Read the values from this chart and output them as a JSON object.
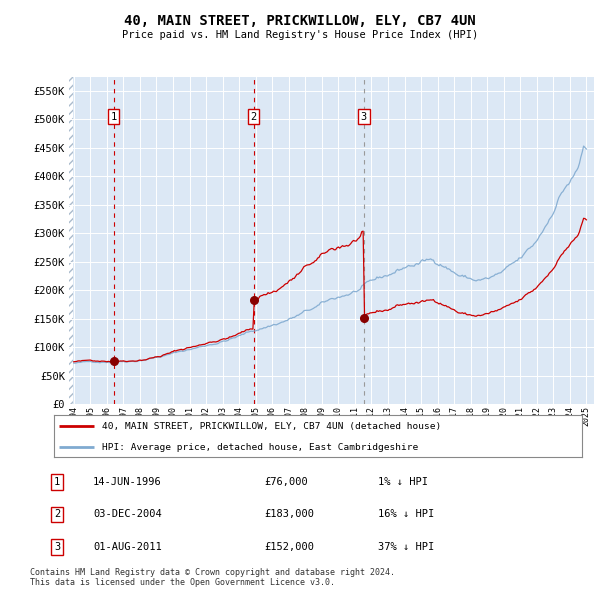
{
  "title": "40, MAIN STREET, PRICKWILLOW, ELY, CB7 4UN",
  "subtitle": "Price paid vs. HM Land Registry's House Price Index (HPI)",
  "legend_line1": "40, MAIN STREET, PRICKWILLOW, ELY, CB7 4UN (detached house)",
  "legend_line2": "HPI: Average price, detached house, East Cambridgeshire",
  "sale_dates_num": [
    1996.45,
    2004.92,
    2011.58
  ],
  "sale_prices": [
    76000,
    183000,
    152000
  ],
  "sale_labels": [
    "1",
    "2",
    "3"
  ],
  "table_rows": [
    {
      "num": "1",
      "date": "14-JUN-1996",
      "price": "£76,000",
      "hpi": "1% ↓ HPI"
    },
    {
      "num": "2",
      "date": "03-DEC-2004",
      "price": "£183,000",
      "hpi": "16% ↓ HPI"
    },
    {
      "num": "3",
      "date": "01-AUG-2011",
      "price": "£152,000",
      "hpi": "37% ↓ HPI"
    }
  ],
  "footer1": "Contains HM Land Registry data © Crown copyright and database right 2024.",
  "footer2": "This data is licensed under the Open Government Licence v3.0.",
  "bg_color": "#dce8f5",
  "red_line_color": "#cc0000",
  "blue_line_color": "#80aad0",
  "sale_dot_color": "#880000",
  "ylim": [
    0,
    575000
  ],
  "yticks": [
    0,
    50000,
    100000,
    150000,
    200000,
    250000,
    300000,
    350000,
    400000,
    450000,
    500000,
    550000
  ],
  "ytick_labels": [
    "£0",
    "£50K",
    "£100K",
    "£150K",
    "£200K",
    "£250K",
    "£300K",
    "£350K",
    "£400K",
    "£450K",
    "£500K",
    "£550K"
  ],
  "hpi_keypoints_t": [
    0.0,
    0.06,
    0.12,
    0.18,
    0.25,
    0.32,
    0.4,
    0.48,
    0.55,
    0.61,
    0.65,
    0.69,
    0.72,
    0.75,
    0.78,
    0.81,
    0.84,
    0.87,
    0.9,
    0.925,
    0.945,
    0.96,
    0.975,
    0.985,
    0.995,
    1.0
  ],
  "hpi_keypoints_v": [
    72000,
    75000,
    80000,
    92000,
    108000,
    128000,
    155000,
    185000,
    210000,
    230000,
    248000,
    258000,
    255000,
    238000,
    228000,
    230000,
    240000,
    255000,
    280000,
    320000,
    365000,
    390000,
    405000,
    420000,
    460000,
    448000
  ],
  "xlim_start": 1993.75,
  "xlim_end": 2025.5
}
